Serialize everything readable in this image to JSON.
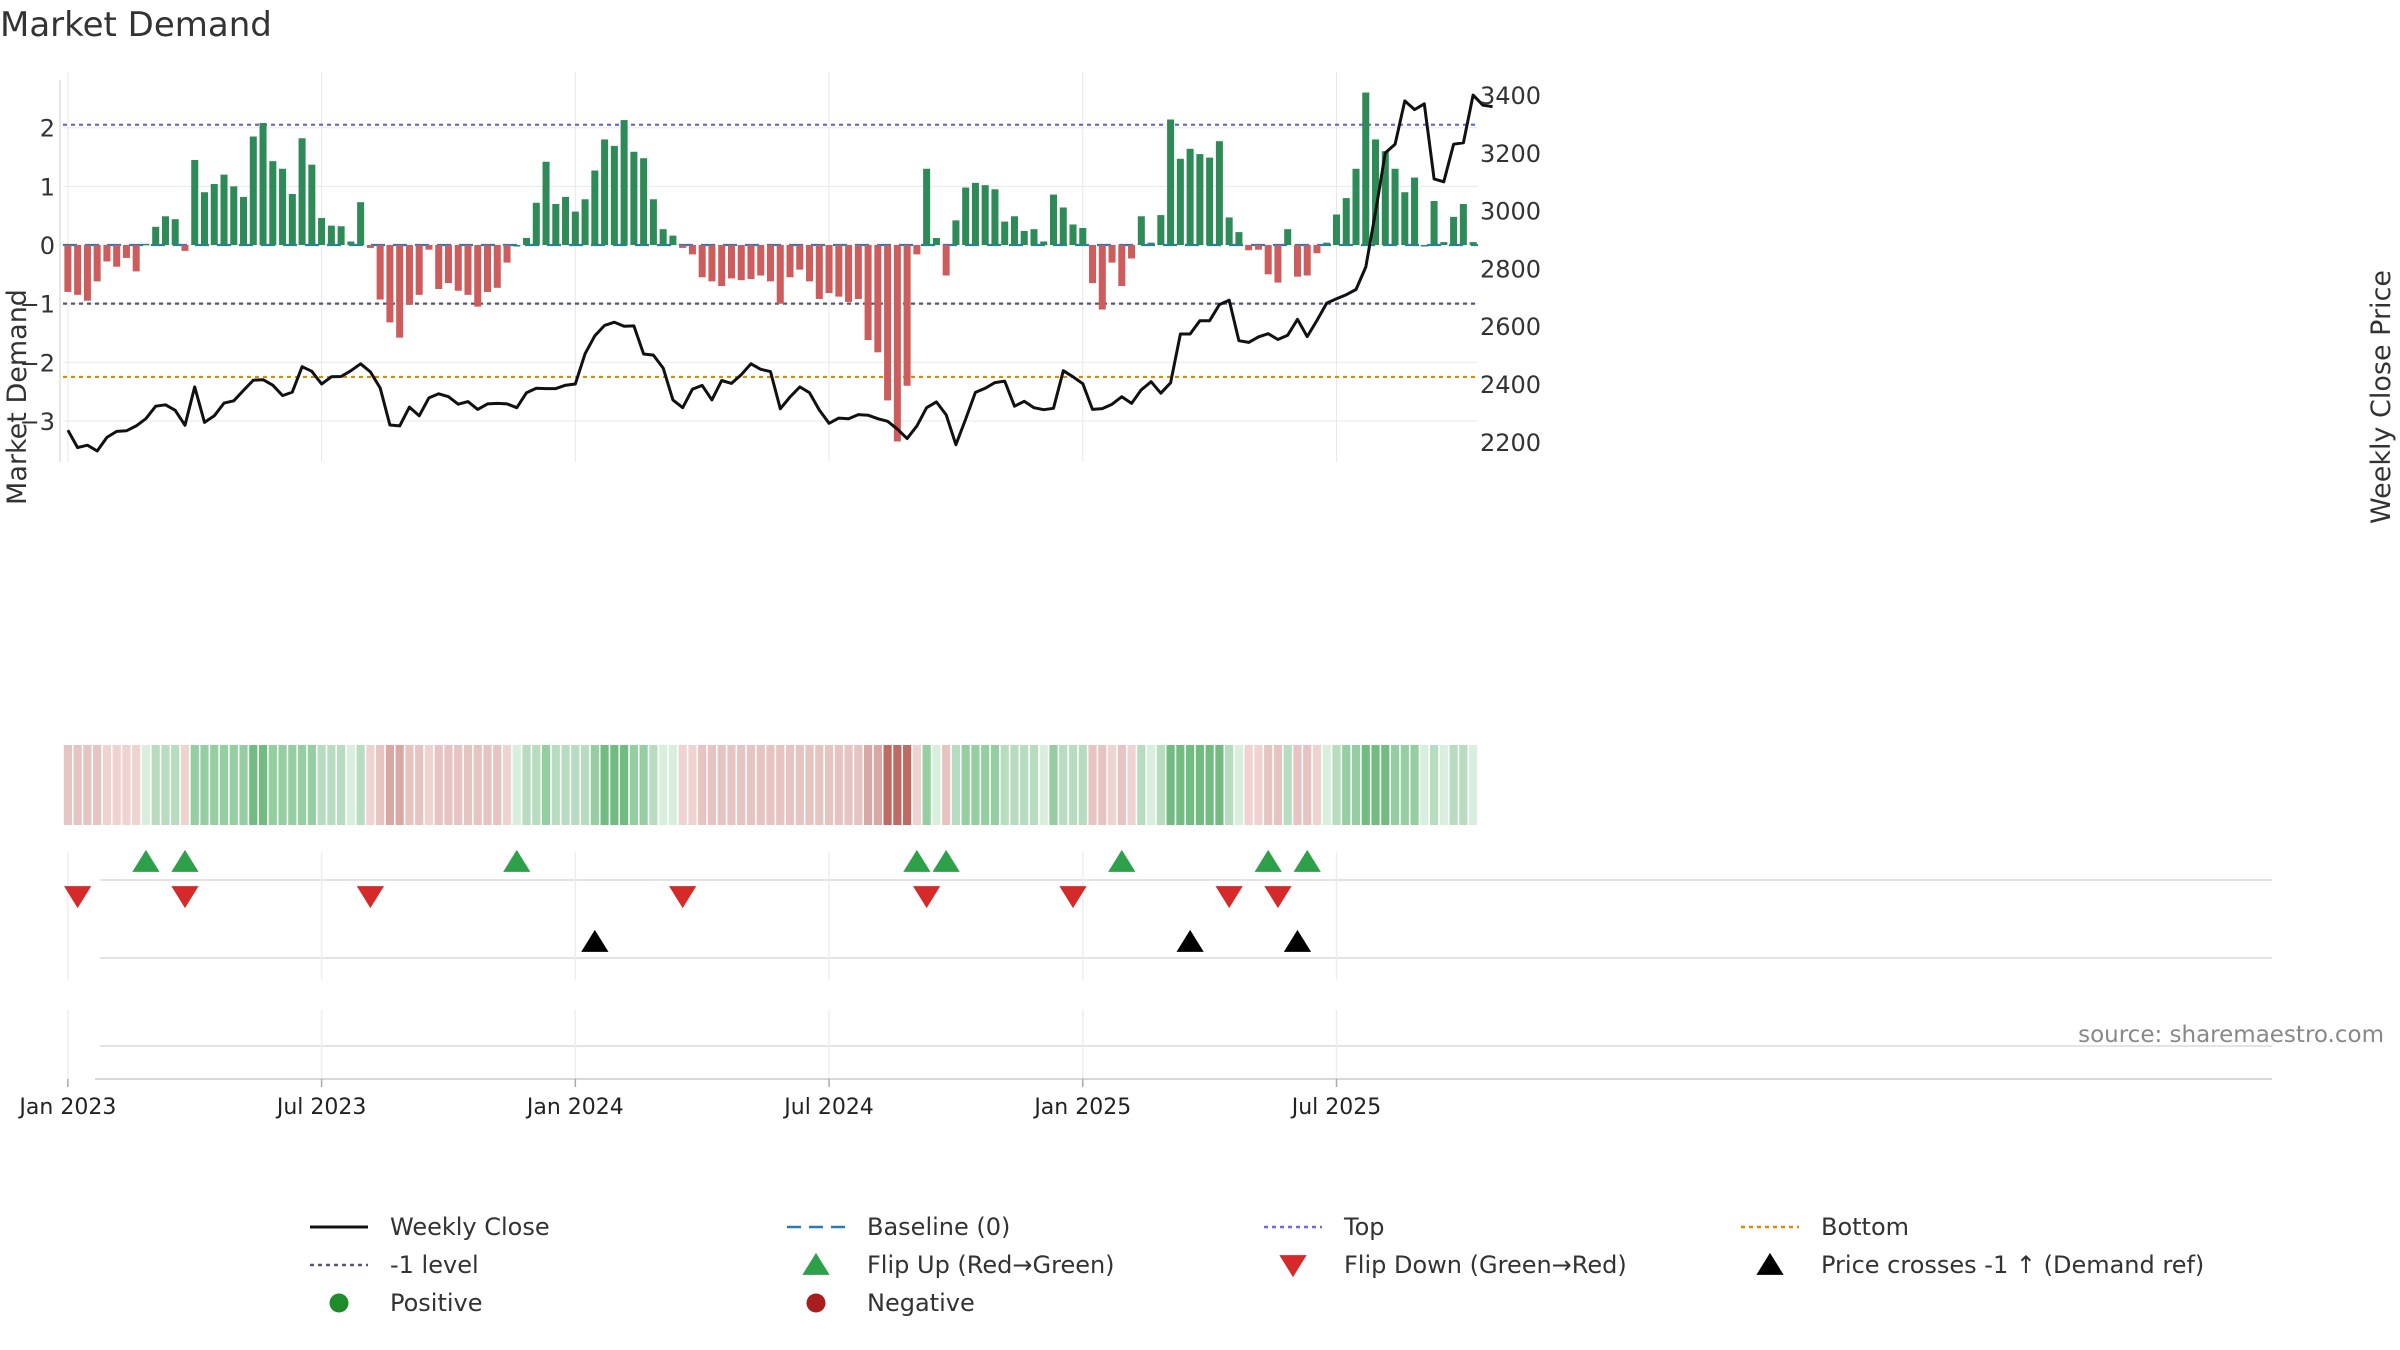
{
  "chart_data": {
    "type": "bar",
    "title": "Market Demand",
    "ylabel_left": "Market Demand",
    "ylabel_right": "Weekly Close Price",
    "source": "source: sharemaestro.com",
    "x_tick_labels": [
      "Jan 2023",
      "Jul 2023",
      "Jan 2024",
      "Jul 2024",
      "Jan 2025",
      "Jul 2025"
    ],
    "x_ticks_at_week": [
      0,
      26,
      52,
      78,
      104,
      130
    ],
    "y_left_ticks": [
      2,
      1,
      0,
      -1,
      -2,
      -3
    ],
    "y_left_tick_labels": [
      "2",
      "1",
      "0",
      "−1",
      "−2",
      "−3"
    ],
    "y_left_range": [
      -3.7,
      2.95
    ],
    "y_right_ticks": [
      3400,
      3200,
      3000,
      2800,
      2600,
      2400,
      2200
    ],
    "y_right_range": [
      2130,
      3480
    ],
    "reference_lines": {
      "top": 2.05,
      "bottom": -2.25,
      "minus_one": -1.0,
      "baseline": 0
    },
    "demand": [
      -0.8,
      -0.85,
      -0.95,
      -0.62,
      -0.28,
      -0.37,
      -0.22,
      -0.45,
      0.02,
      0.31,
      0.49,
      0.44,
      -0.1,
      1.45,
      0.9,
      1.04,
      1.2,
      1.0,
      0.82,
      1.85,
      2.08,
      1.43,
      1.3,
      0.87,
      1.82,
      1.37,
      0.46,
      0.33,
      0.32,
      0.06,
      0.73,
      -0.05,
      -0.93,
      -1.32,
      -1.58,
      -1.02,
      -0.85,
      -0.08,
      -0.75,
      -0.65,
      -0.78,
      -0.85,
      -1.05,
      -0.8,
      -0.73,
      -0.3,
      0.0,
      0.12,
      0.72,
      1.42,
      0.7,
      0.82,
      0.57,
      0.78,
      1.27,
      1.8,
      1.69,
      2.13,
      1.59,
      1.48,
      0.78,
      0.27,
      0.16,
      -0.05,
      -0.16,
      -0.55,
      -0.62,
      -0.7,
      -0.57,
      -0.6,
      -0.58,
      -0.52,
      -0.62,
      -1.0,
      -0.55,
      -0.42,
      -0.62,
      -0.92,
      -0.82,
      -0.88,
      -0.97,
      -0.92,
      -1.62,
      -1.83,
      -2.65,
      -3.35,
      -2.4,
      -0.16,
      1.3,
      0.12,
      -0.52,
      0.42,
      0.98,
      1.06,
      1.02,
      0.95,
      0.4,
      0.49,
      0.24,
      0.27,
      0.06,
      0.86,
      0.64,
      0.35,
      0.29,
      -0.65,
      -1.1,
      -0.3,
      -0.7,
      -0.23,
      0.49,
      0.04,
      0.51,
      2.14,
      1.47,
      1.64,
      1.55,
      1.49,
      1.77,
      0.47,
      0.22,
      -0.09,
      -0.08,
      -0.5,
      -0.64,
      0.27,
      -0.54,
      -0.52,
      -0.14,
      0.04,
      0.52,
      0.8,
      1.3,
      2.6,
      1.8,
      1.6,
      1.3,
      0.9,
      1.15,
      0.0,
      0.75,
      0.05,
      0.48,
      0.7,
      0.05
    ],
    "weekly_close": [
      2240,
      2180,
      2188,
      2168,
      2215,
      2236,
      2238,
      2255,
      2280,
      2323,
      2328,
      2309,
      2257,
      2390,
      2267,
      2290,
      2334,
      2342,
      2378,
      2413,
      2415,
      2396,
      2360,
      2372,
      2460,
      2444,
      2400,
      2425,
      2426,
      2446,
      2470,
      2442,
      2386,
      2258,
      2255,
      2320,
      2290,
      2352,
      2366,
      2356,
      2330,
      2339,
      2312,
      2331,
      2333,
      2331,
      2318,
      2370,
      2385,
      2384,
      2384,
      2396,
      2400,
      2505,
      2567,
      2603,
      2614,
      2600,
      2601,
      2504,
      2500,
      2455,
      2345,
      2318,
      2382,
      2395,
      2345,
      2412,
      2402,
      2432,
      2470,
      2451,
      2443,
      2314,
      2355,
      2390,
      2370,
      2310,
      2264,
      2282,
      2280,
      2294,
      2292,
      2280,
      2271,
      2244,
      2211,
      2255,
      2318,
      2338,
      2293,
      2190,
      2279,
      2371,
      2385,
      2405,
      2410,
      2323,
      2340,
      2318,
      2311,
      2316,
      2446,
      2425,
      2401,
      2312,
      2315,
      2330,
      2356,
      2333,
      2380,
      2408,
      2368,
      2404,
      2573,
      2573,
      2619,
      2619,
      2675,
      2690,
      2550,
      2544,
      2563,
      2574,
      2554,
      2569,
      2624,
      2564,
      2620,
      2680,
      2695,
      2709,
      2727,
      2805,
      2995,
      3200,
      3230,
      3380,
      3350,
      3370,
      3110,
      3100,
      3230,
      3235,
      3400,
      3365,
      3360
    ],
    "strip_colors": [
      "#e6c4c1",
      "#e6c4c1",
      "#e6c4c1",
      "#e6c4c1",
      "#eed3d0",
      "#eed3d0",
      "#eed3d0",
      "#eed3d0",
      "#d9efdd",
      "#b7dcbf",
      "#b7dcbf",
      "#b7dcbf",
      "#eed3d0",
      "#95cea0",
      "#95cea0",
      "#95cea0",
      "#95cea0",
      "#95cea0",
      "#95cea0",
      "#72bc82",
      "#72bc82",
      "#95cea0",
      "#95cea0",
      "#95cea0",
      "#95cea0",
      "#95cea0",
      "#b7dcbf",
      "#b7dcbf",
      "#b7dcbf",
      "#d9efdd",
      "#b7dcbf",
      "#eed3d0",
      "#e6c4c1",
      "#d9a8a4",
      "#d9a8a4",
      "#e6c4c1",
      "#e6c4c1",
      "#eed3d0",
      "#e6c4c1",
      "#e6c4c1",
      "#e6c4c1",
      "#e6c4c1",
      "#e6c4c1",
      "#e6c4c1",
      "#e6c4c1",
      "#eed3d0",
      "#d9efdd",
      "#b7dcbf",
      "#b7dcbf",
      "#95cea0",
      "#b7dcbf",
      "#b7dcbf",
      "#b7dcbf",
      "#b7dcbf",
      "#95cea0",
      "#72bc82",
      "#72bc82",
      "#72bc82",
      "#95cea0",
      "#95cea0",
      "#b7dcbf",
      "#d9efdd",
      "#d9efdd",
      "#eed3d0",
      "#eed3d0",
      "#e6c4c1",
      "#e6c4c1",
      "#e6c4c1",
      "#e6c4c1",
      "#e6c4c1",
      "#e6c4c1",
      "#e6c4c1",
      "#e6c4c1",
      "#e6c4c1",
      "#e6c4c1",
      "#e6c4c1",
      "#e6c4c1",
      "#e6c4c1",
      "#e6c4c1",
      "#e6c4c1",
      "#e6c4c1",
      "#e6c4c1",
      "#d9a8a4",
      "#d9a8a4",
      "#c06a64",
      "#c06a64",
      "#c06a64",
      "#eed3d0",
      "#95cea0",
      "#d9efdd",
      "#e6c4c1",
      "#b7dcbf",
      "#95cea0",
      "#95cea0",
      "#95cea0",
      "#95cea0",
      "#b7dcbf",
      "#b7dcbf",
      "#b7dcbf",
      "#b7dcbf",
      "#d9efdd",
      "#95cea0",
      "#b7dcbf",
      "#b7dcbf",
      "#b7dcbf",
      "#e6c4c1",
      "#e6c4c1",
      "#eed3d0",
      "#e6c4c1",
      "#eed3d0",
      "#b7dcbf",
      "#d9efdd",
      "#b7dcbf",
      "#72bc82",
      "#72bc82",
      "#72bc82",
      "#72bc82",
      "#72bc82",
      "#72bc82",
      "#b7dcbf",
      "#d9efdd",
      "#eed3d0",
      "#eed3d0",
      "#e6c4c1",
      "#e6c4c1",
      "#b7dcbf",
      "#e6c4c1",
      "#e6c4c1",
      "#eed3d0",
      "#d9efdd",
      "#b7dcbf",
      "#95cea0",
      "#95cea0",
      "#72bc82",
      "#72bc82",
      "#72bc82",
      "#95cea0",
      "#95cea0",
      "#95cea0",
      "#d9efdd",
      "#b7dcbf",
      "#d9efdd",
      "#b7dcbf",
      "#b7dcbf",
      "#d9efdd"
    ],
    "flip_up_weeks": [
      8,
      12,
      46,
      87,
      90,
      108,
      123,
      127
    ],
    "flip_down_weeks": [
      1,
      12,
      31,
      63,
      88,
      103,
      119,
      124
    ],
    "price_cross_weeks": [
      54,
      115,
      126
    ],
    "legend": [
      {
        "label": "Weekly Close",
        "symbol": "solid-line",
        "color": "#111111"
      },
      {
        "label": "Baseline (0)",
        "symbol": "dashed-line",
        "color": "#2a7ab8"
      },
      {
        "label": "Top",
        "symbol": "dotted-line",
        "color": "#6a6ad8"
      },
      {
        "label": "Bottom",
        "symbol": "dotted-line",
        "color": "#d48c00"
      },
      {
        "label": "-1 level",
        "symbol": "dotted-line",
        "color": "#555577"
      },
      {
        "label": "Flip Up (Red→Green)",
        "symbol": "triangle-up",
        "color": "#2ea04a"
      },
      {
        "label": "Flip Down (Green→Red)",
        "symbol": "triangle-down",
        "color": "#d62a2a"
      },
      {
        "label": "Price crosses -1 ↑ (Demand ref)",
        "symbol": "triangle-up",
        "color": "#000000"
      },
      {
        "label": "Positive",
        "symbol": "circle",
        "color": "#1e8c2a"
      },
      {
        "label": "Negative",
        "symbol": "circle",
        "color": "#a81e1e"
      }
    ],
    "legend_position": "bottom",
    "colors": {
      "positive_bar": "#2e8b57",
      "negative_bar": "#cd5c5c",
      "price_line": "#111111",
      "grid": "#e8e8e8"
    },
    "grid": true
  }
}
